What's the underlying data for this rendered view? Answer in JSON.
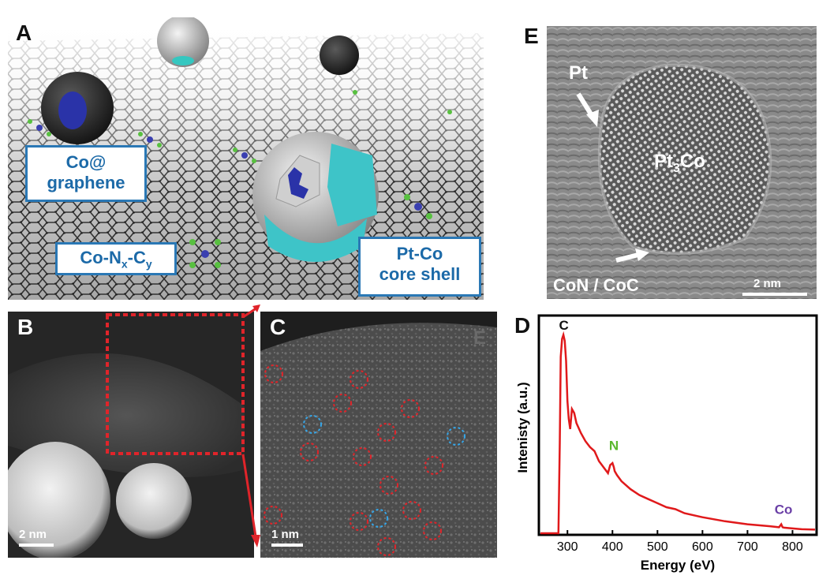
{
  "panels": {
    "a": {
      "letter": "A",
      "callouts": {
        "co_graphene_line1": "Co@",
        "co_graphene_line2": "graphene",
        "conxcy_base": "Co-N",
        "conxcy_sub_x": "x",
        "conxcy_mid": "-C",
        "conxcy_sub_y": "y",
        "ptco_line1": "Pt-Co",
        "ptco_line2": "core shell"
      }
    },
    "b": {
      "letter": "B",
      "scale": "2 nm"
    },
    "c": {
      "letter": "C",
      "scale": "1 nm",
      "ghost_letter": "E"
    },
    "d": {
      "letter": "D"
    },
    "e": {
      "letter": "E",
      "pt_label": "Pt",
      "particle_base": "Pt",
      "particle_sub": "3",
      "particle_tail": "Co",
      "support_label": "CoN / CoC",
      "scale": "2 nm"
    }
  },
  "colors": {
    "callout_border": "#2a78b5",
    "callout_text": "#1c6aa8",
    "spectrum": "#e0191b",
    "n_label": "#5bb82e",
    "co_label": "#6a3fa6",
    "red_marker": "#e0242a",
    "blue_marker": "#36a6e8"
  },
  "chart_data": {
    "type": "line",
    "title": "",
    "xlabel": "Energy (eV)",
    "ylabel": "Intenisty (a.u.)",
    "xlim": [
      240,
      850
    ],
    "ylim": [
      0,
      1
    ],
    "xticks": [
      300,
      400,
      500,
      600,
      700,
      800
    ],
    "tick_labels": [
      "300",
      "400",
      "500",
      "600",
      "700",
      "800"
    ],
    "grid": false,
    "series": [
      {
        "x": [
          240,
          270,
          280,
          283,
          285,
          288,
          291,
          294,
          297,
          300,
          303,
          306,
          310,
          315,
          320,
          330,
          340,
          350,
          360,
          370,
          380,
          390,
          395,
          400,
          403,
          405,
          410,
          420,
          440,
          460,
          480,
          500,
          520,
          540,
          560,
          600,
          650,
          700,
          750,
          770,
          775,
          778,
          781,
          790,
          820,
          850
        ],
        "y": [
          0.0,
          0.0,
          0.0,
          0.45,
          0.88,
          0.97,
          0.99,
          0.96,
          0.86,
          0.66,
          0.57,
          0.52,
          0.62,
          0.6,
          0.55,
          0.5,
          0.46,
          0.43,
          0.41,
          0.36,
          0.33,
          0.3,
          0.34,
          0.35,
          0.33,
          0.31,
          0.29,
          0.26,
          0.22,
          0.19,
          0.17,
          0.15,
          0.13,
          0.12,
          0.1,
          0.08,
          0.06,
          0.045,
          0.035,
          0.03,
          0.045,
          0.03,
          0.028,
          0.026,
          0.02,
          0.018
        ]
      }
    ],
    "annotations": [
      {
        "text": "C",
        "x": 292,
        "y": 1.0
      },
      {
        "text": "N",
        "x": 403,
        "y": 0.4
      },
      {
        "text": "Co",
        "x": 780,
        "y": 0.08
      }
    ]
  }
}
